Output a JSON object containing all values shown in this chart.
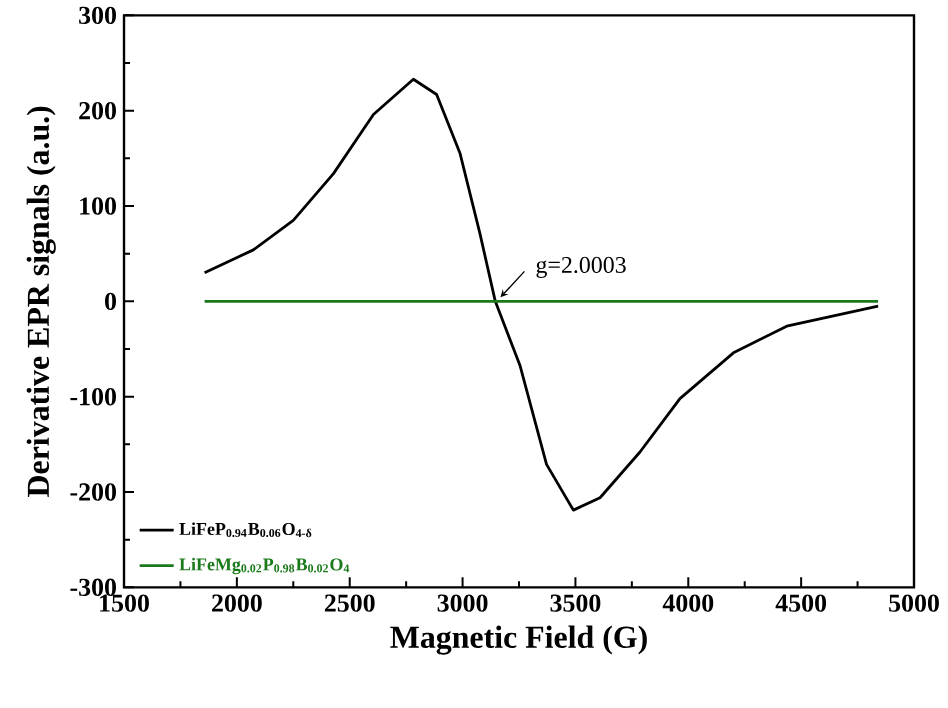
{
  "chart_data": {
    "type": "line",
    "xlabel": "Magnetic Field (G)",
    "ylabel": "Derivative EPR signals (a.u.)",
    "xlim": [
      1500,
      5000
    ],
    "xticks": [
      1500,
      2000,
      2500,
      3000,
      3500,
      4000,
      4500,
      5000
    ],
    "ylim": [
      -300,
      300
    ],
    "yticks": [
      -300,
      -200,
      -100,
      0,
      100,
      200,
      300
    ],
    "legend": "bottom left",
    "marker": "none",
    "line_style": "solid",
    "annotations": [
      {
        "text": "g=2.0003",
        "x": 3150,
        "y": 0
      }
    ],
    "series": [
      {
        "name": "LiFeP$_{0.94}$B$_{0.06}$O$_{4-δ}$",
        "color": "#000000",
        "x": [
          1857,
          2073,
          2250,
          2428,
          2605,
          2782,
          2885,
          2989,
          3077,
          3145,
          3254,
          3372,
          3491,
          3609,
          3786,
          3963,
          4200,
          4436,
          4841
        ],
        "values": [
          30,
          54,
          85,
          134,
          196,
          233,
          217,
          155,
          71,
          0,
          -67,
          -171,
          -219,
          -206,
          -158,
          -102,
          -54,
          -26,
          -5
        ]
      },
      {
        "name": "LiFeMg$_{0.02}$P$_{0.98}$B$_{0.02}$O$_{4}$",
        "color": "#1a7a1a",
        "x": [
          1857,
          2500,
          3150,
          4000,
          4841
        ],
        "values": [
          0,
          0,
          0,
          0,
          0
        ]
      }
    ]
  }
}
